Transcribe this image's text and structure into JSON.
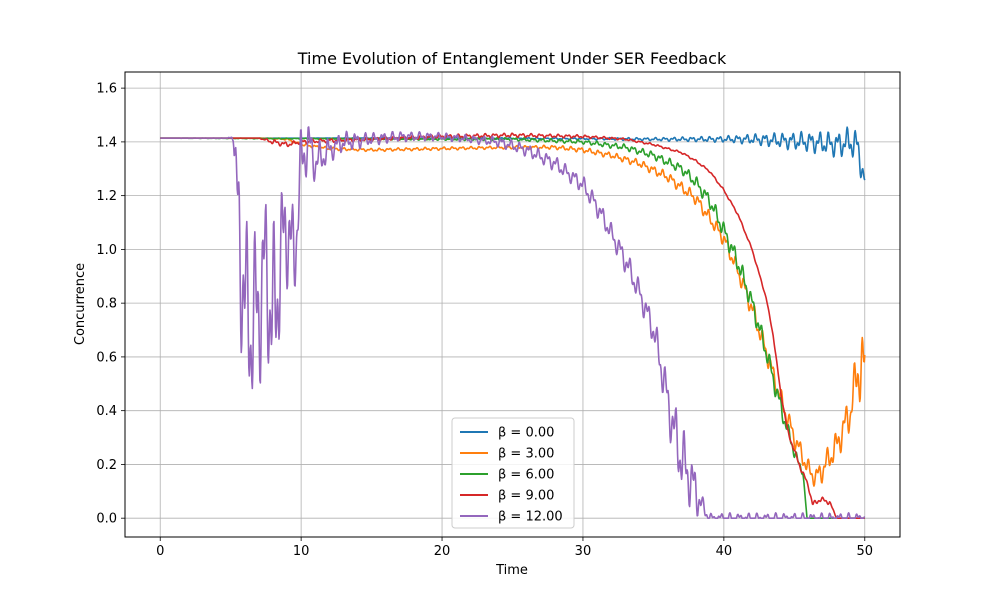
{
  "chart_data": {
    "type": "line",
    "title": "Time Evolution of Entanglement Under SER Feedback",
    "xlabel": "Time",
    "ylabel": "Concurrence",
    "xlim": [
      -2.5,
      52.5
    ],
    "ylim": [
      -0.07,
      1.66
    ],
    "xticks": [
      0,
      10,
      20,
      30,
      40,
      50
    ],
    "yticks": [
      0.0,
      0.2,
      0.4,
      0.6,
      0.8,
      1.0,
      1.2,
      1.4,
      1.6
    ],
    "ytick_labels": [
      "0.0",
      "0.2",
      "0.4",
      "0.6",
      "0.8",
      "1.0",
      "1.2",
      "1.4",
      "1.6"
    ],
    "xtick_labels": [
      "0",
      "10",
      "20",
      "30",
      "40",
      "50"
    ],
    "grid": true,
    "legend_position": "lower-center",
    "series": [
      {
        "name": "β = 0.00",
        "color": "#1f77b4",
        "x": [
          0,
          10,
          20,
          30,
          35,
          40,
          42,
          44,
          46,
          48,
          49,
          49.5,
          50
        ],
        "y": [
          1.414,
          1.414,
          1.414,
          1.412,
          1.41,
          1.41,
          1.41,
          1.405,
          1.4,
          1.39,
          1.4,
          1.38,
          1.25
        ],
        "noise_amp": [
          0,
          0,
          0.003,
          0.004,
          0.006,
          0.012,
          0.02,
          0.03,
          0.04,
          0.05,
          0.06,
          0.07,
          0.04
        ]
      },
      {
        "name": "β = 3.00",
        "color": "#ff7f0e",
        "x": [
          0,
          7,
          9,
          10,
          12,
          15,
          20,
          25,
          28,
          30,
          32,
          34,
          36,
          38,
          40,
          41,
          42,
          43,
          44,
          45,
          46,
          46.5,
          47,
          48,
          49,
          49.5,
          50
        ],
        "y": [
          1.414,
          1.414,
          1.41,
          1.39,
          1.375,
          1.37,
          1.375,
          1.38,
          1.38,
          1.37,
          1.35,
          1.32,
          1.27,
          1.19,
          1.04,
          0.92,
          0.78,
          0.62,
          0.45,
          0.3,
          0.18,
          0.15,
          0.18,
          0.27,
          0.4,
          0.55,
          0.55
        ],
        "noise_amp": [
          0,
          0,
          0.004,
          0.006,
          0.006,
          0.006,
          0.006,
          0.006,
          0.008,
          0.01,
          0.012,
          0.015,
          0.02,
          0.025,
          0.03,
          0.035,
          0.04,
          0.04,
          0.04,
          0.04,
          0.04,
          0.04,
          0.05,
          0.06,
          0.08,
          0.12,
          0.18
        ]
      },
      {
        "name": "β = 6.00",
        "color": "#2ca02c",
        "x": [
          0,
          10,
          20,
          25,
          30,
          33,
          35,
          37,
          38,
          39,
          40,
          41,
          42,
          43,
          44,
          44.5,
          45,
          45.3,
          45.6,
          45.9,
          50
        ],
        "y": [
          1.414,
          1.412,
          1.41,
          1.41,
          1.4,
          1.38,
          1.35,
          1.3,
          1.25,
          1.18,
          1.07,
          0.95,
          0.8,
          0.62,
          0.42,
          0.33,
          0.25,
          0.2,
          0.18,
          0.0,
          0.0
        ],
        "noise_amp": [
          0,
          0.002,
          0.004,
          0.006,
          0.008,
          0.012,
          0.015,
          0.02,
          0.025,
          0.03,
          0.035,
          0.04,
          0.04,
          0.04,
          0.04,
          0.03,
          0.03,
          0.02,
          0.02,
          0,
          0
        ]
      },
      {
        "name": "β = 9.00",
        "color": "#d62728",
        "x": [
          0,
          7,
          8,
          9,
          10,
          12,
          15,
          20,
          25,
          30,
          33,
          35,
          37,
          38,
          39,
          40,
          41,
          42,
          43,
          43.5,
          44,
          44.5,
          45,
          45.5,
          46,
          46.3,
          46.8,
          47.5,
          48,
          50
        ],
        "y": [
          1.414,
          1.414,
          1.4,
          1.39,
          1.4,
          1.405,
          1.41,
          1.42,
          1.425,
          1.42,
          1.41,
          1.39,
          1.36,
          1.33,
          1.29,
          1.22,
          1.13,
          1.0,
          0.82,
          0.68,
          0.48,
          0.33,
          0.25,
          0.18,
          0.12,
          0.05,
          0.07,
          0.06,
          0.0,
          0.0
        ],
        "noise_amp": [
          0,
          0,
          0.01,
          0.01,
          0.008,
          0.008,
          0.008,
          0.008,
          0.008,
          0.006,
          0.004,
          0.004,
          0.004,
          0.004,
          0.004,
          0.004,
          0.004,
          0.004,
          0.004,
          0.004,
          0.006,
          0.008,
          0.01,
          0.01,
          0.01,
          0.01,
          0.012,
          0.01,
          0,
          0
        ]
      },
      {
        "name": "β = 12.00",
        "color": "#9467bd",
        "x": [
          0,
          4.8,
          5.2,
          5.6,
          6.0,
          6.5,
          7.0,
          7.5,
          8.0,
          8.5,
          9.0,
          9.5,
          10.0,
          10.5,
          11.0,
          12.0,
          13.0,
          15.0,
          17.0,
          20.0,
          22.0,
          24.0,
          26.0,
          28.0,
          29.0,
          30.0,
          31.0,
          32.0,
          33.0,
          34.0,
          35.0,
          35.5,
          36.0,
          36.5,
          37.0,
          37.5,
          38.0,
          38.5,
          39.0,
          50.0
        ],
        "y": [
          1.414,
          1.414,
          1.42,
          1.05,
          0.8,
          0.7,
          0.8,
          0.95,
          0.7,
          0.95,
          1.1,
          0.95,
          1.32,
          1.4,
          1.32,
          1.37,
          1.4,
          1.41,
          1.42,
          1.42,
          1.41,
          1.4,
          1.37,
          1.32,
          1.28,
          1.24,
          1.16,
          1.06,
          0.96,
          0.84,
          0.7,
          0.58,
          0.44,
          0.32,
          0.22,
          0.16,
          0.1,
          0.04,
          0.0,
          0.0
        ],
        "noise_amp": [
          0,
          0,
          0.02,
          0.35,
          0.35,
          0.35,
          0.35,
          0.3,
          0.4,
          0.3,
          0.25,
          0.2,
          0.15,
          0.1,
          0.08,
          0.05,
          0.04,
          0.025,
          0.02,
          0.015,
          0.015,
          0.02,
          0.025,
          0.03,
          0.03,
          0.035,
          0.04,
          0.04,
          0.05,
          0.05,
          0.06,
          0.08,
          0.1,
          0.12,
          0.14,
          0.12,
          0.1,
          0.04,
          0.02,
          0.02
        ]
      }
    ]
  }
}
